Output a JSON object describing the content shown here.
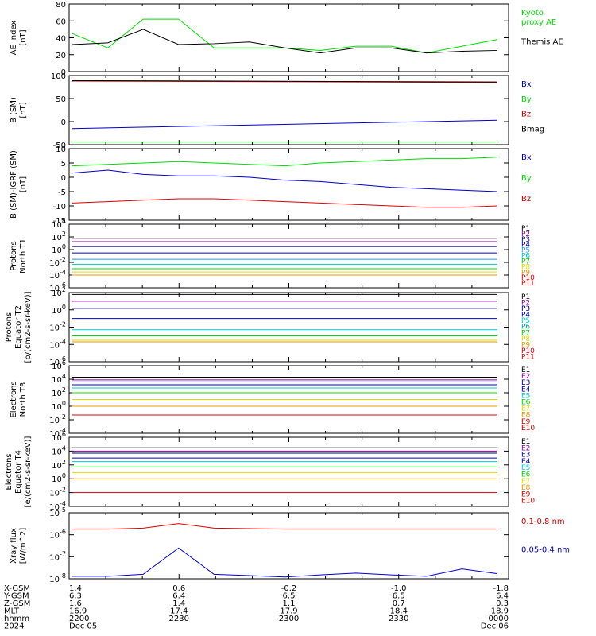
{
  "figure": {
    "x_axis": {
      "tick_labels": [
        ":",
        "",
        "",
        "",
        "",
        ""
      ],
      "rows": [
        {
          "name": "X-GSM",
          "values": [
            "1.4",
            "0.6",
            "-0.2",
            "-1.0",
            "-1.8"
          ]
        },
        {
          "name": "Y-GSM",
          "values": [
            "6.3",
            "6.4",
            "6.5",
            "6.5",
            "6.4"
          ]
        },
        {
          "name": "Z-GSM",
          "values": [
            "1.6",
            "1.4",
            "1.1",
            "0.7",
            "0.3"
          ]
        },
        {
          "name": "MLT",
          "values": [
            "16.9",
            "17.4",
            "17.9",
            "18.4",
            "18.9"
          ]
        },
        {
          "name": "hhmm",
          "values": [
            "2200",
            "2230",
            "2300",
            "2330",
            "0000"
          ]
        },
        {
          "name": "2024",
          "values": [
            "Dec 05",
            "",
            "",
            "",
            "Dec 06"
          ]
        }
      ]
    }
  },
  "colors": {
    "black": "#000000",
    "red": "#dd0000",
    "green": "#00dd00",
    "blue": "#0000cc",
    "navy": "#000088",
    "cyan": "#00cccc",
    "orange": "#ee9900",
    "yellow": "#dddd00",
    "purple": "#880099",
    "teal": "#00aaaa",
    "lightblue": "#2299ff"
  },
  "chart_data": [
    {
      "type": "line",
      "ylabel": "AE index\n[nT]",
      "ylim": [
        0,
        80
      ],
      "yticks": [
        "0",
        "20",
        "40",
        "60",
        "80"
      ],
      "x": [
        "22:00",
        "22:10",
        "22:20",
        "22:30",
        "22:40",
        "22:50",
        "23:00",
        "23:10",
        "23:20",
        "23:30",
        "23:40",
        "23:50",
        "00:00"
      ],
      "series": [
        {
          "name": "Kyoto\nproxy AE",
          "color": "green",
          "values": [
            45,
            28,
            62,
            62,
            28,
            28,
            28,
            25,
            30,
            30,
            22,
            30,
            38
          ]
        },
        {
          "name": "Themis AE",
          "color": "black",
          "values": [
            32,
            34,
            50,
            32,
            33,
            35,
            28,
            22,
            28,
            28,
            22,
            24,
            25
          ]
        }
      ]
    },
    {
      "type": "line",
      "ylabel": "B (SM)\n[nT]",
      "ylim": [
        -50,
        100
      ],
      "yticks": [
        "-50",
        "0",
        "50",
        "100"
      ],
      "x": [
        "22:00",
        "00:00"
      ],
      "series": [
        {
          "name": "Bx",
          "color": "blue",
          "values": [
            -15,
            3
          ]
        },
        {
          "name": "By",
          "color": "green",
          "values": [
            -44,
            -44
          ]
        },
        {
          "name": "Bz",
          "color": "red",
          "values": [
            88,
            85
          ]
        },
        {
          "name": "Bmag",
          "color": "black",
          "values": [
            89,
            86
          ]
        }
      ]
    },
    {
      "type": "line",
      "ylabel": "B (SM)-IGRF (SM)\n[nT]",
      "ylim": [
        -15,
        10
      ],
      "yticks": [
        "-15",
        "-10",
        "-5",
        "0",
        "5",
        "10"
      ],
      "x": [
        "22:00",
        "22:10",
        "22:20",
        "22:30",
        "22:40",
        "22:50",
        "23:00",
        "23:10",
        "23:20",
        "23:30",
        "23:40",
        "23:50",
        "00:00"
      ],
      "series": [
        {
          "name": "Bx",
          "color": "blue",
          "values": [
            1.5,
            2.5,
            1,
            0.5,
            0.5,
            0,
            -1,
            -1.5,
            -2.5,
            -3.5,
            -4,
            -4.5,
            -5
          ]
        },
        {
          "name": "By",
          "color": "green",
          "values": [
            4,
            4.5,
            5,
            5.5,
            5,
            4.5,
            4,
            5,
            5.5,
            6,
            6.5,
            6.5,
            7
          ]
        },
        {
          "name": "Bz",
          "color": "red",
          "values": [
            -9,
            -8.5,
            -8,
            -7.5,
            -7.5,
            -8,
            -8.5,
            -9,
            -9.5,
            -10,
            -10.5,
            -10.5,
            -10
          ]
        }
      ]
    },
    {
      "type": "line",
      "ylabel": "Protons\nNorth T1",
      "ylog": true,
      "yrange_exp": [
        -6,
        4
      ],
      "yticks": [
        "10-6",
        "10-4",
        "10-2",
        "100",
        "102",
        "104"
      ],
      "x": [
        "22:00",
        "00:00"
      ],
      "series": [
        {
          "name": "P1",
          "color": "black",
          "values": [
            60,
            60
          ]
        },
        {
          "name": "P2",
          "color": "purple",
          "values": [
            18,
            18
          ]
        },
        {
          "name": "P3",
          "color": "navy",
          "values": [
            3,
            3
          ]
        },
        {
          "name": "P4",
          "color": "blue",
          "values": [
            0.3,
            0.3
          ]
        },
        {
          "name": "P5",
          "color": "lightblue",
          "values": [
            0.03,
            0.03
          ]
        },
        {
          "name": "P6",
          "color": "cyan",
          "values": [
            0.005,
            0.005
          ]
        },
        {
          "name": "P7",
          "color": "green",
          "values": [
            0.001,
            0.001
          ]
        },
        {
          "name": "P8",
          "color": "yellow",
          "values": [
            0.0003,
            0.0003
          ]
        },
        {
          "name": "P9",
          "color": "orange",
          "values": [
            0.0001,
            0.0001
          ]
        },
        {
          "name": "P10",
          "color": "red",
          "values": [
            null,
            null
          ]
        },
        {
          "name": "P11",
          "color": "red",
          "values": [
            null,
            null
          ]
        }
      ]
    },
    {
      "type": "line",
      "ylabel": "Protons\nEquator T2\n[p/(cm2-s-sr-keV)]",
      "ylog": true,
      "yrange_exp": [
        -6,
        2
      ],
      "yticks": [
        "10-6",
        "10-4",
        "10-2",
        "100",
        "102"
      ],
      "x": [
        "22:00",
        "00:00"
      ],
      "series": [
        {
          "name": "P1",
          "color": "black",
          "values": [
            60,
            60
          ]
        },
        {
          "name": "P2",
          "color": "purple",
          "values": [
            10,
            10
          ]
        },
        {
          "name": "P3",
          "color": "navy",
          "values": [
            1.5,
            1.5
          ]
        },
        {
          "name": "P4",
          "color": "blue",
          "values": [
            0.1,
            0.1
          ]
        },
        {
          "name": "P5",
          "color": "cyan",
          "values": [
            0.005,
            0.005
          ]
        },
        {
          "name": "P6",
          "color": "teal",
          "values": [
            0.001,
            0.001
          ]
        },
        {
          "name": "P7",
          "color": "green",
          "values": [
            0.001,
            0.001
          ]
        },
        {
          "name": "P8",
          "color": "yellow",
          "values": [
            0.0003,
            0.0003
          ]
        },
        {
          "name": "P9",
          "color": "orange",
          "values": [
            0.0002,
            0.0002
          ]
        },
        {
          "name": "P10",
          "color": "red",
          "values": [
            null,
            null
          ]
        },
        {
          "name": "P11",
          "color": "red",
          "values": [
            null,
            null
          ]
        }
      ]
    },
    {
      "type": "line",
      "ylabel": "Electrons\nNorth T3",
      "ylog": true,
      "yrange_exp": [
        -4,
        6
      ],
      "yticks": [
        "10-4",
        "10-2",
        "100",
        "102",
        "104",
        "106"
      ],
      "x": [
        "22:00",
        "00:00"
      ],
      "series": [
        {
          "name": "E1",
          "color": "black",
          "values": [
            20000,
            20000
          ]
        },
        {
          "name": "E2",
          "color": "purple",
          "values": [
            8000,
            8000
          ]
        },
        {
          "name": "E3",
          "color": "navy",
          "values": [
            4000,
            4000
          ]
        },
        {
          "name": "E4",
          "color": "blue",
          "values": [
            1500,
            1500
          ]
        },
        {
          "name": "E5",
          "color": "cyan",
          "values": [
            500,
            500
          ]
        },
        {
          "name": "E6",
          "color": "green",
          "values": [
            100,
            100
          ]
        },
        {
          "name": "E7",
          "color": "yellow",
          "values": [
            10,
            10
          ]
        },
        {
          "name": "E8",
          "color": "orange",
          "values": [
            1,
            1
          ]
        },
        {
          "name": "E9",
          "color": "red",
          "values": [
            0.05,
            0.05
          ]
        },
        {
          "name": "E10",
          "color": "red",
          "values": [
            null,
            null
          ]
        }
      ]
    },
    {
      "type": "line",
      "ylabel": "Electrons\nEquator T4\n[e/(cm2-s-sr-keV)]",
      "ylog": true,
      "yrange_exp": [
        -4,
        6
      ],
      "yticks": [
        "10-4",
        "10-2",
        "100",
        "102",
        "104",
        "106"
      ],
      "x": [
        "22:00",
        "00:00"
      ],
      "series": [
        {
          "name": "E1",
          "color": "black",
          "values": [
            30000,
            30000
          ]
        },
        {
          "name": "E2",
          "color": "purple",
          "values": [
            10000,
            10000
          ]
        },
        {
          "name": "E3",
          "color": "navy",
          "values": [
            5000,
            5000
          ]
        },
        {
          "name": "E4",
          "color": "blue",
          "values": [
            1000,
            1000
          ]
        },
        {
          "name": "E5",
          "color": "cyan",
          "values": [
            300,
            300
          ]
        },
        {
          "name": "E6",
          "color": "green",
          "values": [
            50,
            50
          ]
        },
        {
          "name": "E7",
          "color": "yellow",
          "values": [
            8,
            8
          ]
        },
        {
          "name": "E8",
          "color": "orange",
          "values": [
            1,
            1
          ]
        },
        {
          "name": "E9",
          "color": "red",
          "values": [
            0.01,
            0.01
          ]
        },
        {
          "name": "E10",
          "color": "red",
          "values": [
            null,
            null
          ]
        }
      ]
    },
    {
      "type": "line",
      "ylabel": "Xray flux\n[W/m^2]",
      "ylog": true,
      "yrange_exp": [
        -8,
        -5
      ],
      "yticks": [
        "10-8",
        "10-7",
        "10-6",
        "10-5"
      ],
      "x": [
        "22:00",
        "22:10",
        "22:20",
        "22:30",
        "22:40",
        "22:50",
        "23:00",
        "23:10",
        "23:20",
        "23:30",
        "23:40",
        "23:50",
        "00:00"
      ],
      "series": [
        {
          "name": "0.1-0.8 nm",
          "color": "red",
          "values": [
            1.8e-06,
            1.8e-06,
            2e-06,
            3.2e-06,
            2e-06,
            1.9e-06,
            1.8e-06,
            1.8e-06,
            1.8e-06,
            1.8e-06,
            1.8e-06,
            1.8e-06,
            1.8e-06
          ]
        },
        {
          "name": "0.05-0.4 nm",
          "color": "blue",
          "values": [
            1.3e-08,
            1.3e-08,
            1.6e-08,
            2.5e-07,
            1.6e-08,
            1.4e-08,
            1.2e-08,
            1.5e-08,
            1.8e-08,
            1.5e-08,
            1.3e-08,
            2.8e-08,
            1.7e-08
          ]
        }
      ]
    }
  ]
}
